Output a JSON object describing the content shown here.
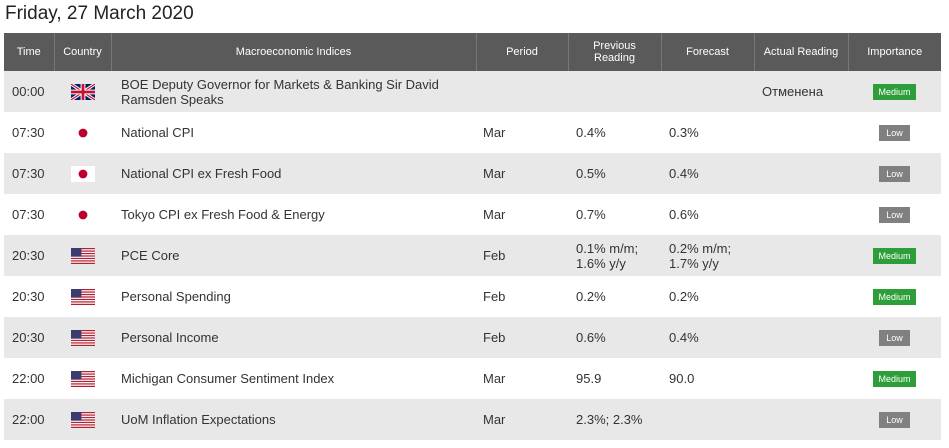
{
  "title": "Friday, 27 March 2020",
  "columns": {
    "time": "Time",
    "country": "Country",
    "indices": "Macroeconomic Indices",
    "period": "Period",
    "previous": "Previous Reading",
    "forecast": "Forecast",
    "actual": "Actual Reading",
    "importance": "Importance"
  },
  "colors": {
    "header_bg": "#5a5a5a",
    "medium": "#2e9e3a",
    "low": "#808080",
    "row_alt": "#e8e8e8"
  },
  "rows": [
    {
      "time": "00:00",
      "country": "uk-flag-icon",
      "name": "BOE Deputy Governor for Markets & Banking Sir David Ramsden Speaks",
      "period": "",
      "previous": "",
      "forecast": "",
      "actual": "Отменена",
      "importance": "Medium"
    },
    {
      "time": "07:30",
      "country": "japan-flag-icon",
      "name": "National CPI",
      "period": "Mar",
      "previous": "0.4%",
      "forecast": "0.3%",
      "actual": "",
      "importance": "Low"
    },
    {
      "time": "07:30",
      "country": "japan-flag-icon",
      "name": "National CPI ex Fresh Food",
      "period": "Mar",
      "previous": "0.5%",
      "forecast": "0.4%",
      "actual": "",
      "importance": "Low"
    },
    {
      "time": "07:30",
      "country": "japan-flag-icon",
      "name": "Tokyo CPI ex Fresh Food & Energy",
      "period": "Mar",
      "previous": "0.7%",
      "forecast": "0.6%",
      "actual": "",
      "importance": "Low"
    },
    {
      "time": "20:30",
      "country": "us-flag-icon",
      "name": "PCE Core",
      "period": "Feb",
      "previous": "0.1% m/m; 1.6% y/y",
      "forecast": "0.2% m/m; 1.7% y/y",
      "actual": "",
      "importance": "Medium"
    },
    {
      "time": "20:30",
      "country": "us-flag-icon",
      "name": "Personal Spending",
      "period": "Feb",
      "previous": "0.2%",
      "forecast": "0.2%",
      "actual": "",
      "importance": "Medium"
    },
    {
      "time": "20:30",
      "country": "us-flag-icon",
      "name": "Personal Income",
      "period": "Feb",
      "previous": "0.6%",
      "forecast": "0.4%",
      "actual": "",
      "importance": "Low"
    },
    {
      "time": "22:00",
      "country": "us-flag-icon",
      "name": "Michigan Consumer Sentiment Index",
      "period": "Mar",
      "previous": "95.9",
      "forecast": "90.0",
      "actual": "",
      "importance": "Medium"
    },
    {
      "time": "22:00",
      "country": "us-flag-icon",
      "name": "UoM Inflation Expectations",
      "period": "Mar",
      "previous": "2.3%; 2.3%",
      "forecast": "",
      "actual": "",
      "importance": "Low"
    }
  ]
}
